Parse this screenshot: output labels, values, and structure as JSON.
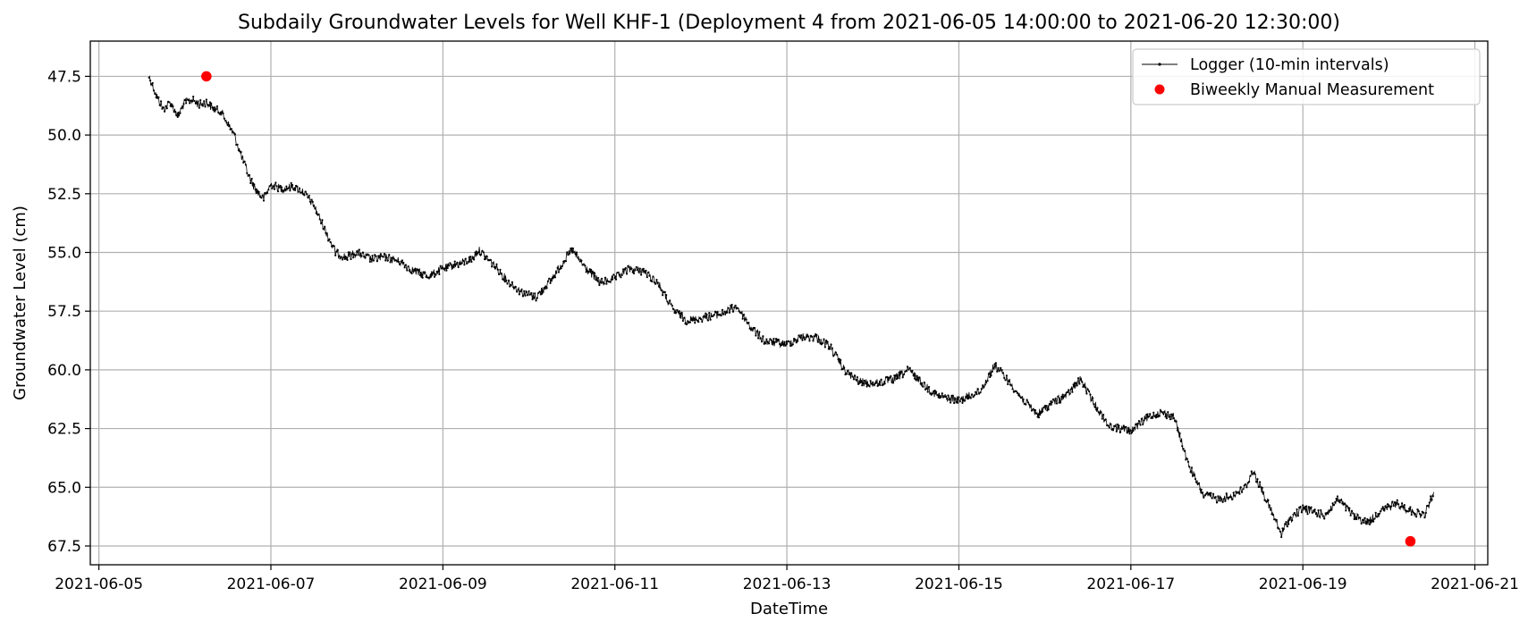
{
  "chart_data": {
    "type": "line",
    "title": "Subdaily Groundwater Levels for Well KHF-1 (Deployment 4 from 2021-06-05 14:00:00 to 2021-06-20 12:30:00)",
    "xlabel": "DateTime",
    "ylabel": "Groundwater Level (cm)",
    "y_inverted": true,
    "ylim": [
      68.3,
      46.0
    ],
    "xlim": [
      "2021-06-04T21:36:00",
      "2021-06-21T03:36:00"
    ],
    "x_ticks": [
      "2021-06-05",
      "2021-06-07",
      "2021-06-09",
      "2021-06-11",
      "2021-06-13",
      "2021-06-15",
      "2021-06-17",
      "2021-06-19",
      "2021-06-21"
    ],
    "y_ticks": [
      47.5,
      50.0,
      52.5,
      55.0,
      57.5,
      60.0,
      62.5,
      65.0,
      67.5
    ],
    "grid": true,
    "legend_position": "top-right",
    "series": [
      {
        "name": "Logger (10-min intervals)",
        "kind": "line-with-markers",
        "color": "#000000",
        "points": [
          [
            "2021-06-05T14:00",
            47.5
          ],
          [
            "2021-06-05T16:00",
            48.3
          ],
          [
            "2021-06-05T18:00",
            48.9
          ],
          [
            "2021-06-05T20:00",
            48.6
          ],
          [
            "2021-06-05T22:00",
            49.2
          ],
          [
            "2021-06-06T00:00",
            48.6
          ],
          [
            "2021-06-06T02:00",
            48.5
          ],
          [
            "2021-06-06T04:00",
            48.7
          ],
          [
            "2021-06-06T06:00",
            48.6
          ],
          [
            "2021-06-06T08:00",
            48.9
          ],
          [
            "2021-06-06T10:00",
            49.0
          ],
          [
            "2021-06-06T12:00",
            49.5
          ],
          [
            "2021-06-06T14:00",
            50.1
          ],
          [
            "2021-06-06T16:00",
            51.0
          ],
          [
            "2021-06-06T18:00",
            51.8
          ],
          [
            "2021-06-06T20:00",
            52.4
          ],
          [
            "2021-06-06T22:00",
            52.7
          ],
          [
            "2021-06-07T00:00",
            52.1
          ],
          [
            "2021-06-07T03:00",
            52.3
          ],
          [
            "2021-06-07T06:00",
            52.2
          ],
          [
            "2021-06-07T09:00",
            52.4
          ],
          [
            "2021-06-07T12:00",
            53.0
          ],
          [
            "2021-06-07T15:00",
            54.0
          ],
          [
            "2021-06-07T18:00",
            55.0
          ],
          [
            "2021-06-07T21:00",
            55.2
          ],
          [
            "2021-06-08T00:00",
            55.0
          ],
          [
            "2021-06-08T04:00",
            55.3
          ],
          [
            "2021-06-08T08:00",
            55.2
          ],
          [
            "2021-06-08T12:00",
            55.4
          ],
          [
            "2021-06-08T16:00",
            55.8
          ],
          [
            "2021-06-08T20:00",
            56.0
          ],
          [
            "2021-06-09T00:00",
            55.7
          ],
          [
            "2021-06-09T04:00",
            55.5
          ],
          [
            "2021-06-09T08:00",
            55.3
          ],
          [
            "2021-06-09T10:00",
            54.9
          ],
          [
            "2021-06-09T14:00",
            55.5
          ],
          [
            "2021-06-09T18:00",
            56.2
          ],
          [
            "2021-06-09T22:00",
            56.7
          ],
          [
            "2021-06-10T02:00",
            56.9
          ],
          [
            "2021-06-10T06:00",
            56.2
          ],
          [
            "2021-06-10T10:00",
            55.3
          ],
          [
            "2021-06-10T12:00",
            54.9
          ],
          [
            "2021-06-10T16:00",
            55.7
          ],
          [
            "2021-06-10T20:00",
            56.3
          ],
          [
            "2021-06-11T00:00",
            56.1
          ],
          [
            "2021-06-11T04:00",
            55.7
          ],
          [
            "2021-06-11T08:00",
            55.8
          ],
          [
            "2021-06-11T12:00",
            56.3
          ],
          [
            "2021-06-11T16:00",
            57.4
          ],
          [
            "2021-06-11T20:00",
            57.9
          ],
          [
            "2021-06-12T00:00",
            57.8
          ],
          [
            "2021-06-12T06:00",
            57.6
          ],
          [
            "2021-06-12T10:00",
            57.3
          ],
          [
            "2021-06-12T14:00",
            58.2
          ],
          [
            "2021-06-12T18:00",
            58.8
          ],
          [
            "2021-06-13T00:00",
            58.9
          ],
          [
            "2021-06-13T04:00",
            58.6
          ],
          [
            "2021-06-13T08:00",
            58.6
          ],
          [
            "2021-06-13T12:00",
            59.0
          ],
          [
            "2021-06-13T16:00",
            60.0
          ],
          [
            "2021-06-13T20:00",
            60.5
          ],
          [
            "2021-06-14T00:00",
            60.6
          ],
          [
            "2021-06-14T06:00",
            60.4
          ],
          [
            "2021-06-14T10:00",
            60.0
          ],
          [
            "2021-06-14T14:00",
            60.6
          ],
          [
            "2021-06-14T18:00",
            61.1
          ],
          [
            "2021-06-15T00:00",
            61.3
          ],
          [
            "2021-06-15T06:00",
            60.9
          ],
          [
            "2021-06-15T10:00",
            59.8
          ],
          [
            "2021-06-15T14:00",
            60.5
          ],
          [
            "2021-06-15T18:00",
            61.3
          ],
          [
            "2021-06-15T22:00",
            61.9
          ],
          [
            "2021-06-16T02:00",
            61.4
          ],
          [
            "2021-06-16T06:00",
            61.1
          ],
          [
            "2021-06-16T10:00",
            60.4
          ],
          [
            "2021-06-16T14:00",
            61.5
          ],
          [
            "2021-06-16T18:00",
            62.4
          ],
          [
            "2021-06-17T00:00",
            62.6
          ],
          [
            "2021-06-17T04:00",
            62.1
          ],
          [
            "2021-06-17T08:00",
            61.8
          ],
          [
            "2021-06-17T12:00",
            62.0
          ],
          [
            "2021-06-17T16:00",
            64.0
          ],
          [
            "2021-06-17T20:00",
            65.3
          ],
          [
            "2021-06-18T00:00",
            65.5
          ],
          [
            "2021-06-18T04:00",
            65.4
          ],
          [
            "2021-06-18T08:00",
            65.0
          ],
          [
            "2021-06-18T10:00",
            64.3
          ],
          [
            "2021-06-18T14:00",
            65.6
          ],
          [
            "2021-06-18T18:00",
            67.0
          ],
          [
            "2021-06-18T20:00",
            66.4
          ],
          [
            "2021-06-19T00:00",
            65.9
          ],
          [
            "2021-06-19T06:00",
            66.2
          ],
          [
            "2021-06-19T10:00",
            65.5
          ],
          [
            "2021-06-19T14:00",
            66.2
          ],
          [
            "2021-06-19T18:00",
            66.5
          ],
          [
            "2021-06-19T22:00",
            66.0
          ],
          [
            "2021-06-20T02:00",
            65.7
          ],
          [
            "2021-06-20T06:00",
            66.0
          ],
          [
            "2021-06-20T10:00",
            66.2
          ],
          [
            "2021-06-20T12:30",
            65.2
          ]
        ]
      },
      {
        "name": "Biweekly Manual Measurement",
        "kind": "scatter",
        "color": "#ff0000",
        "points": [
          [
            "2021-06-06T06:00",
            47.5
          ],
          [
            "2021-06-20T06:00",
            67.3
          ]
        ]
      }
    ]
  }
}
